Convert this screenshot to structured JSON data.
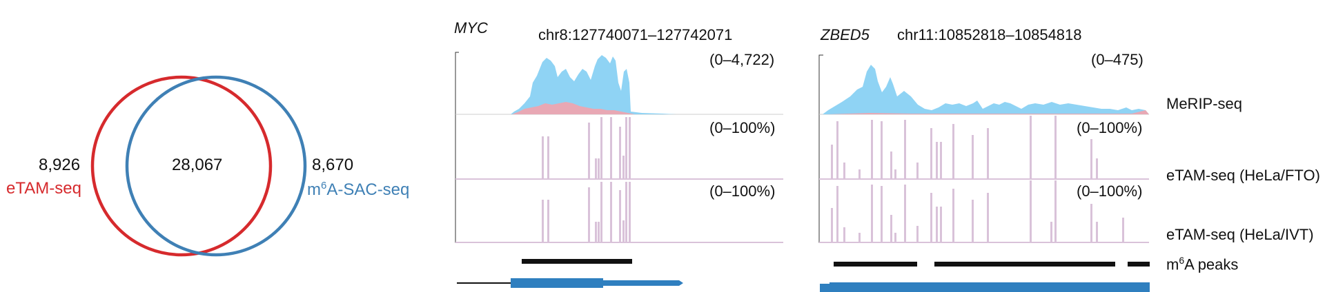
{
  "venn": {
    "left_only": "8,926",
    "left_label": "eTAM-seq",
    "overlap": "28,067",
    "right_only": "8,670",
    "right_label_sup": "6",
    "right_label_pre": "m",
    "right_label_post": "A-SAC-seq",
    "colors": {
      "left": "#d62a2d",
      "right": "#3f80b5"
    }
  },
  "panels": [
    {
      "gene": "MYC",
      "coords": "chr8:127740071–127742071",
      "ranges": [
        "(0–4,722)",
        "(0–100%)",
        "(0–100%)"
      ]
    },
    {
      "gene": "ZBED5",
      "coords": "chr11:10852818–10854818",
      "ranges": [
        "(0–475)",
        "(0–100%)",
        "(0–100%)"
      ]
    }
  ],
  "tracks": {
    "merip": "MeRIP-seq",
    "etam_fto": "eTAM-seq (HeLa/FTO)",
    "etam_ivt": "eTAM-seq (HeLa/IVT)",
    "peaks_pre": "m",
    "peaks_sup": "6",
    "peaks_post": "A peaks"
  },
  "colors": {
    "merip_ip": "#8fd3f4",
    "merip_input": "#e8a8b4",
    "etam_bar": "#d9c2d9",
    "gene_model": "#2f7fbf",
    "peak": "#111111"
  }
}
